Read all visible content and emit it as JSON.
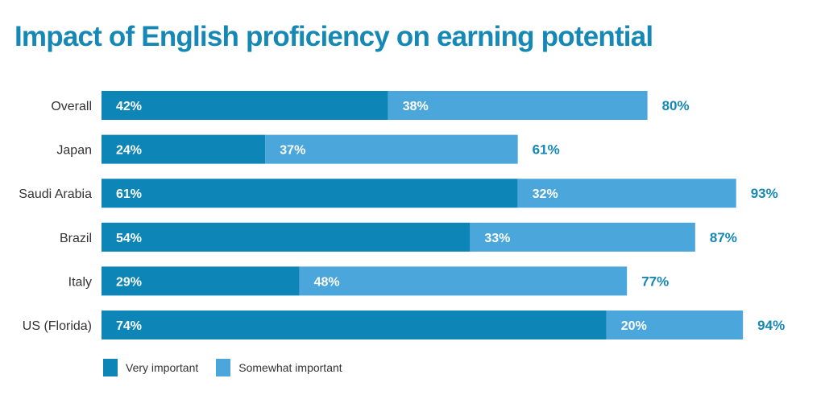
{
  "colors": {
    "title": "#1688b5",
    "very_important": "#0d85b6",
    "somewhat_important": "#4aa6db",
    "total_label": "#1688b5"
  },
  "chart_data": {
    "type": "bar",
    "orientation": "horizontal",
    "stacked": true,
    "title": "Impact of English proficiency on earning potential",
    "categories": [
      "Overall",
      "Japan",
      "Saudi Arabia",
      "Brazil",
      "Italy",
      "US (Florida)"
    ],
    "series": [
      {
        "name": "Very important",
        "values": [
          42,
          24,
          61,
          54,
          29,
          74
        ],
        "labels": [
          "42%",
          "24%",
          "61%",
          "54%",
          "29%",
          "74%"
        ]
      },
      {
        "name": "Somewhat important",
        "values": [
          38,
          37,
          32,
          33,
          48,
          20
        ],
        "labels": [
          "38%",
          "37%",
          "32%",
          "33%",
          "48%",
          "20%"
        ]
      }
    ],
    "totals": [
      80,
      61,
      93,
      87,
      77,
      94
    ],
    "total_labels": [
      "80%",
      "61%",
      "93%",
      "87%",
      "77%",
      "94%"
    ],
    "xlim": [
      0,
      100
    ],
    "grid": false,
    "legend_position": "bottom-left"
  }
}
